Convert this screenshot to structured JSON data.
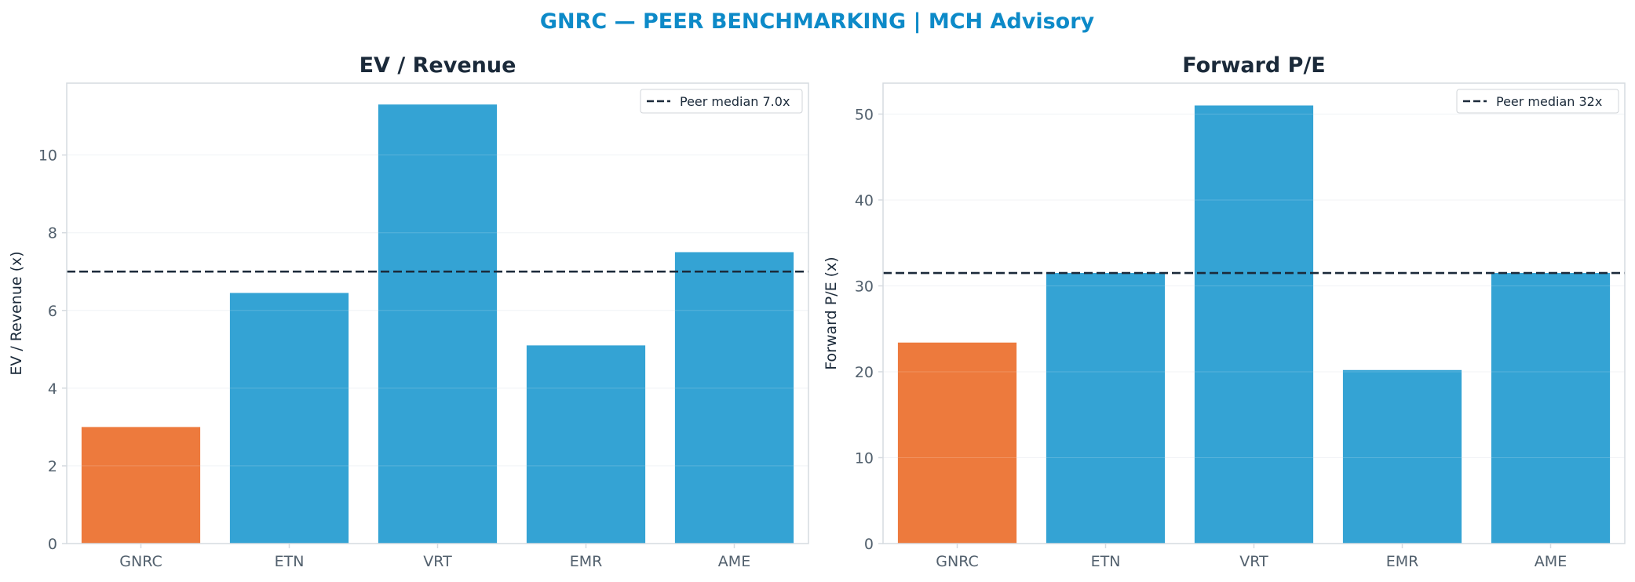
{
  "figure_title": "GNRC — PEER BENCHMARKING | MCH Advisory",
  "colors": {
    "title": "#0d8ac8",
    "highlight": "#ed7a3d",
    "peer": "#34a3d4",
    "median_line": "#1b2a3a",
    "axis_text": "#52606d",
    "frame": "#d6dbe0",
    "grid": "#eef1f4"
  },
  "chart_data": [
    {
      "type": "bar",
      "title": "EV / Revenue",
      "xlabel": "",
      "ylabel": "EV / Revenue (x)",
      "categories": [
        "GNRC",
        "ETN",
        "VRT",
        "EMR",
        "AME"
      ],
      "values": [
        3.0,
        6.45,
        11.3,
        5.1,
        7.5
      ],
      "highlight_category": "GNRC",
      "ylim": [
        0,
        11.85
      ],
      "yticks": [
        0,
        2,
        4,
        6,
        8,
        10
      ],
      "reference_line": {
        "value": 7.0,
        "style": "dashed",
        "label": "Peer median 7.0x"
      },
      "grid": "horizontal",
      "legend": "upper right"
    },
    {
      "type": "bar",
      "title": "Forward P/E",
      "xlabel": "",
      "ylabel": "Forward P/E (x)",
      "categories": [
        "GNRC",
        "ETN",
        "VRT",
        "EMR",
        "AME"
      ],
      "values": [
        23.4,
        31.5,
        51.0,
        20.2,
        31.5
      ],
      "highlight_category": "GNRC",
      "ylim": [
        0,
        53.6
      ],
      "yticks": [
        0,
        10,
        20,
        30,
        40,
        50
      ],
      "reference_line": {
        "value": 31.5,
        "style": "dashed",
        "label": "Peer median 32x"
      },
      "grid": "horizontal",
      "legend": "upper right"
    }
  ]
}
